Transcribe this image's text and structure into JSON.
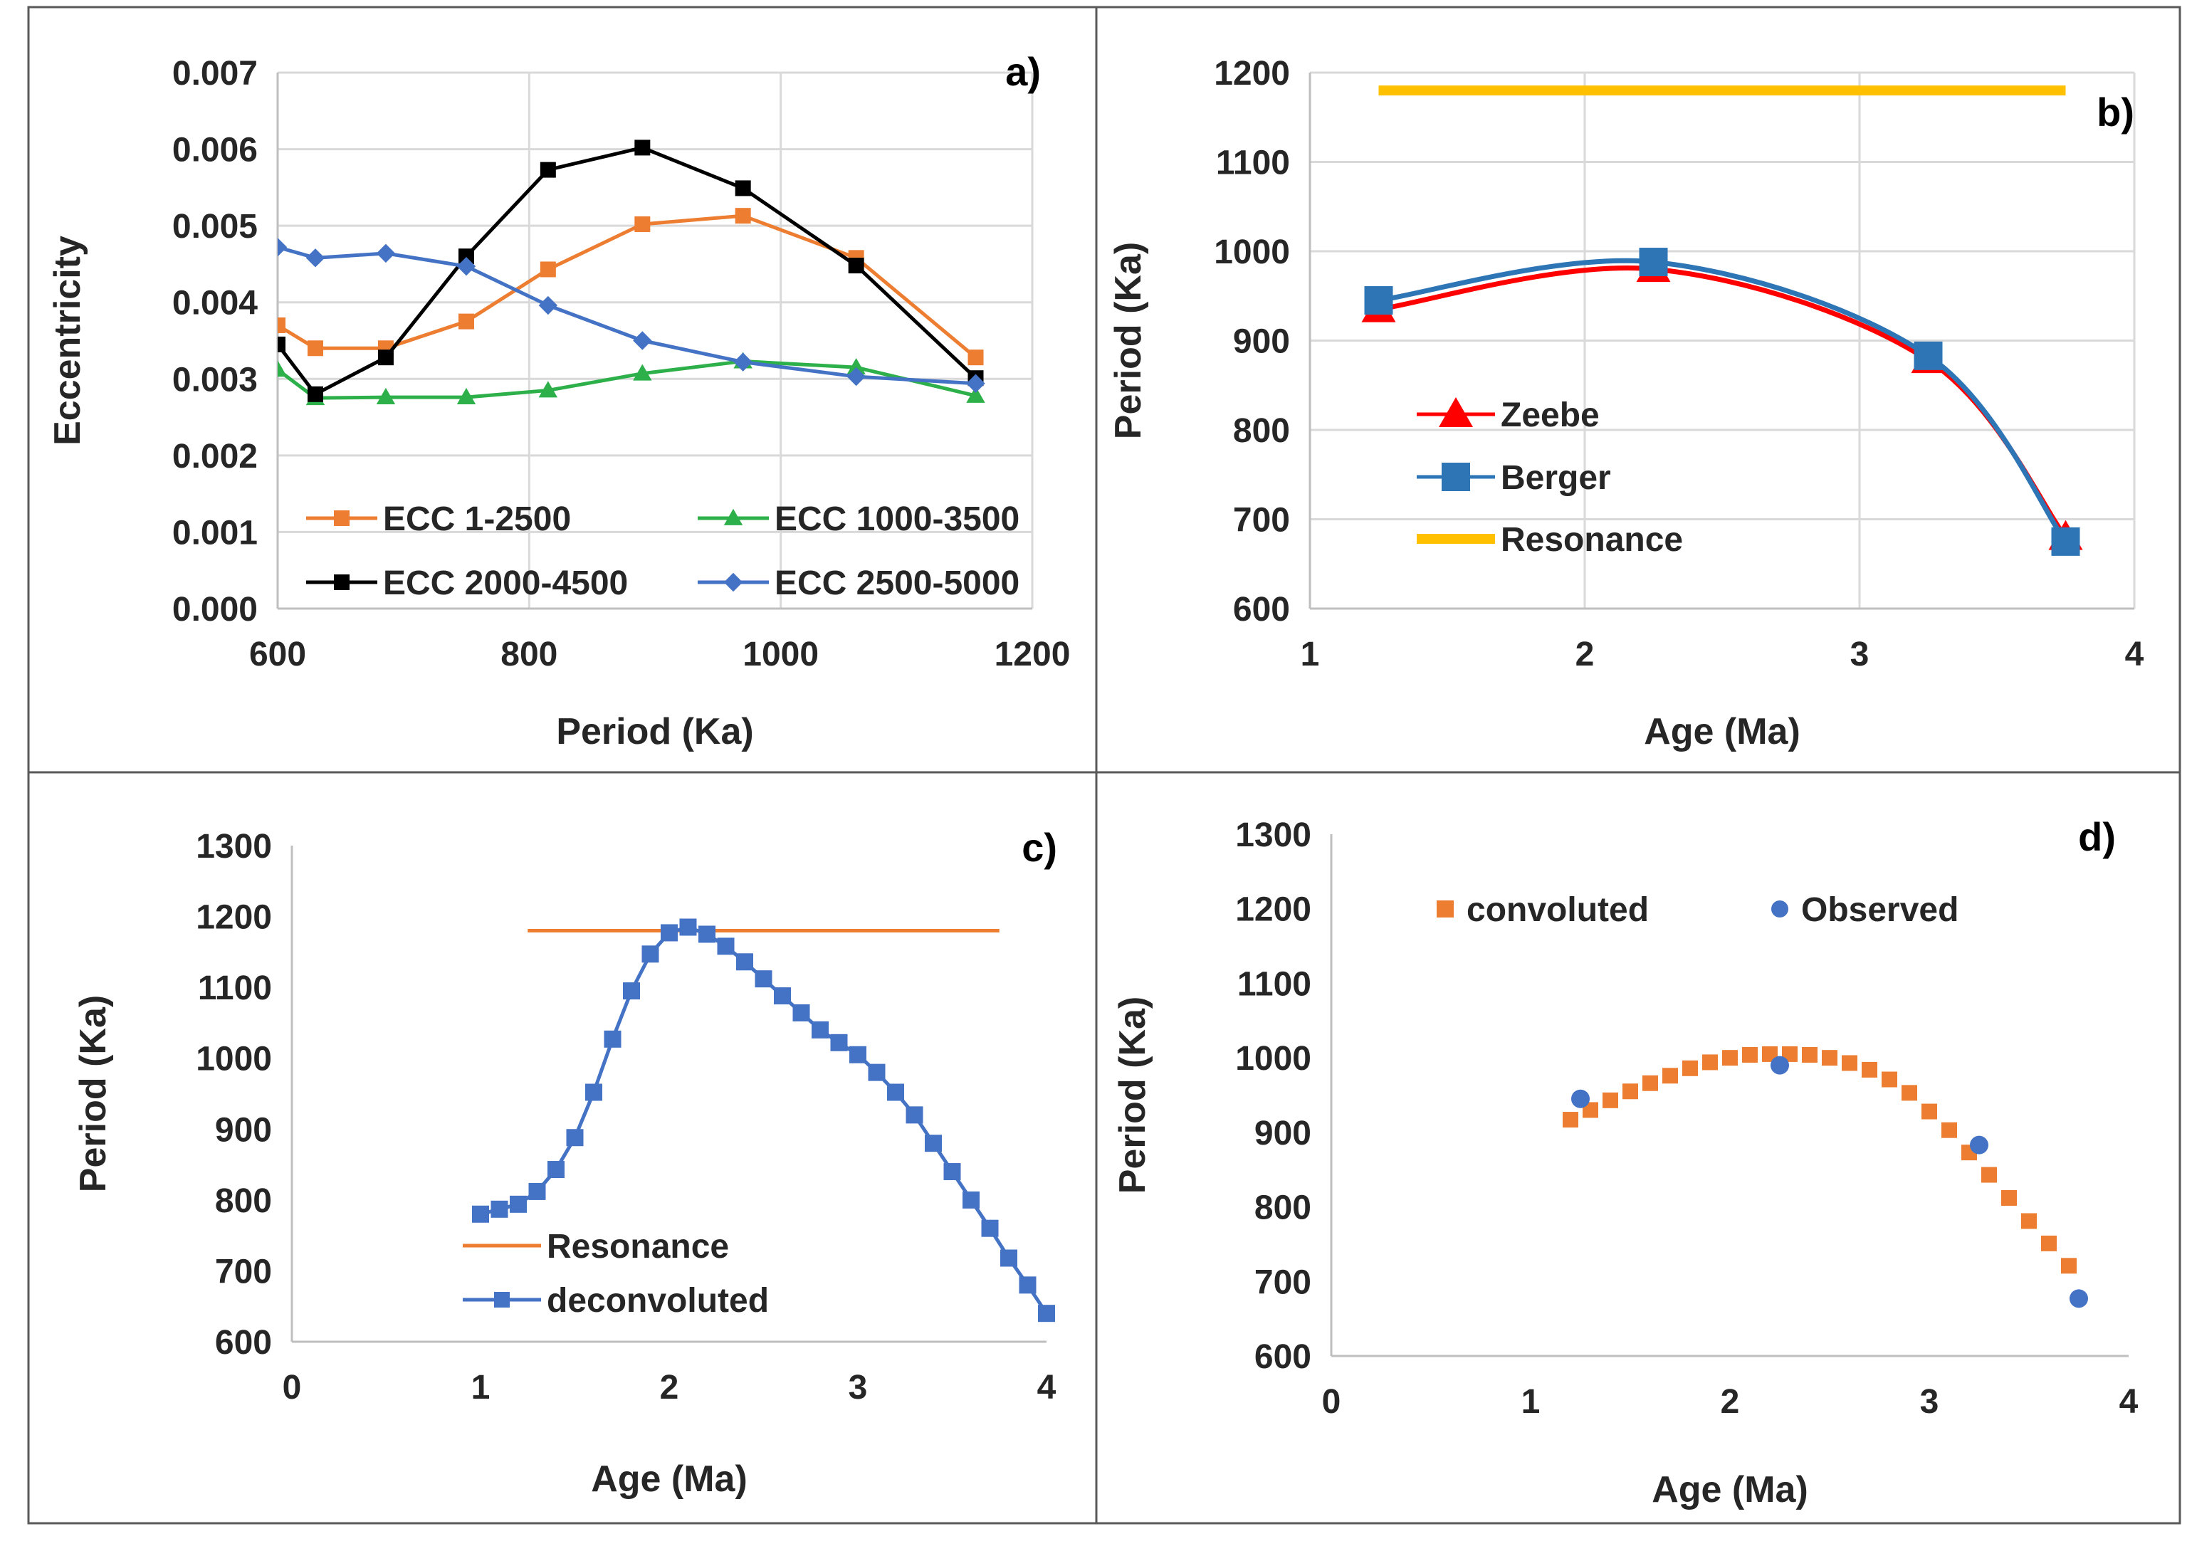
{
  "chart_data": [
    {
      "id": "a",
      "type": "line",
      "panel_label": "a)",
      "xlabel": "Period (Ka)",
      "ylabel": "Eccentricity",
      "xlim": [
        600,
        1200
      ],
      "ylim": [
        0,
        0.007
      ],
      "xticks": [
        "600",
        "800",
        "1000",
        "1200"
      ],
      "yticks": [
        "0.000",
        "0.001",
        "0.002",
        "0.003",
        "0.004",
        "0.005",
        "0.006",
        "0.007"
      ],
      "grid": true,
      "legend": [
        "ECC       1-2500",
        "ECC 1000-3500",
        "ECC 2000-4500",
        "ECC 2500-5000"
      ],
      "series": [
        {
          "name": "ECC       1-2500",
          "color": "#ED7D31",
          "marker": "square",
          "x": [
            600,
            630,
            686,
            750,
            815,
            890,
            970,
            1060,
            1155
          ],
          "y": [
            0.0037,
            0.0034,
            0.0034,
            0.00375,
            0.00443,
            0.00502,
            0.00513,
            0.00458,
            0.00328
          ]
        },
        {
          "name": "ECC 1000-3500",
          "color": "#2DB04A",
          "marker": "triangle",
          "x": [
            600,
            630,
            686,
            750,
            815,
            890,
            970,
            1060,
            1155
          ],
          "y": [
            0.00312,
            0.00275,
            0.00276,
            0.00276,
            0.00285,
            0.00307,
            0.00323,
            0.00315,
            0.00278
          ]
        },
        {
          "name": "ECC 2000-4500",
          "color": "#000000",
          "marker": "square",
          "x": [
            600,
            630,
            686,
            750,
            815,
            890,
            970,
            1060,
            1155
          ],
          "y": [
            0.00345,
            0.0028,
            0.00328,
            0.0046,
            0.00573,
            0.00602,
            0.00549,
            0.00448,
            0.00301
          ]
        },
        {
          "name": "ECC 2500-5000",
          "color": "#4472C4",
          "marker": "diamond",
          "x": [
            600,
            630,
            686,
            750,
            815,
            890,
            970,
            1060,
            1155
          ],
          "y": [
            0.00472,
            0.00458,
            0.00464,
            0.00447,
            0.00396,
            0.0035,
            0.00322,
            0.00303,
            0.00294
          ]
        }
      ]
    },
    {
      "id": "b",
      "type": "line",
      "panel_label": "b)",
      "xlabel": "Age (Ma)",
      "ylabel": "Period (Ka)",
      "xlim": [
        1,
        4
      ],
      "ylim": [
        600,
        1200
      ],
      "xticks": [
        "1",
        "2",
        "3",
        "4"
      ],
      "yticks": [
        "600",
        "700",
        "800",
        "900",
        "1000",
        "1100",
        "1200"
      ],
      "grid": true,
      "legend": [
        "Zeebe",
        "Berger",
        "Resonance"
      ],
      "series": [
        {
          "name": "Zeebe",
          "color": "#FF0000",
          "marker": "triangle",
          "x": [
            1.25,
            2.25,
            3.25,
            3.75
          ],
          "y": [
            935,
            980,
            878,
            680
          ]
        },
        {
          "name": "Berger",
          "color": "#2E75B6",
          "marker": "square",
          "x": [
            1.25,
            2.25,
            3.25,
            3.75
          ],
          "y": [
            945,
            988,
            883,
            675
          ]
        },
        {
          "name": "Resonance",
          "color": "#FFC000",
          "marker": "none",
          "x": [
            1.25,
            3.75
          ],
          "y": [
            1180,
            1180
          ]
        }
      ]
    },
    {
      "id": "c",
      "type": "line",
      "panel_label": "c)",
      "xlabel": "Age (Ma)",
      "ylabel": "Period (Ka)",
      "xlim": [
        0,
        4
      ],
      "ylim": [
        600,
        1300
      ],
      "xticks": [
        "0",
        "1",
        "2",
        "3",
        "4"
      ],
      "yticks": [
        "600",
        "700",
        "800",
        "900",
        "1000",
        "1100",
        "1200",
        "1300"
      ],
      "grid": false,
      "legend": [
        "Resonance",
        "deconvoluted"
      ],
      "series": [
        {
          "name": "Resonance",
          "color": "#ED7D31",
          "marker": "none",
          "x": [
            1.25,
            3.75
          ],
          "y": [
            1180,
            1180
          ]
        },
        {
          "name": "deconvoluted",
          "color": "#4472C4",
          "marker": "square",
          "x": [
            1.0,
            1.1,
            1.2,
            1.3,
            1.4,
            1.5,
            1.6,
            1.7,
            1.8,
            1.9,
            2.0,
            2.1,
            2.2,
            2.3,
            2.4,
            2.5,
            2.6,
            2.7,
            2.8,
            2.9,
            3.0,
            3.1,
            3.2,
            3.3,
            3.4,
            3.5,
            3.6,
            3.7,
            3.8,
            3.9,
            4.0
          ],
          "y": [
            780,
            787,
            794,
            812,
            843,
            888,
            952,
            1027,
            1095,
            1147,
            1177,
            1185,
            1175,
            1158,
            1136,
            1112,
            1088,
            1064,
            1040,
            1022,
            1005,
            980,
            952,
            920,
            880,
            840,
            800,
            760,
            718,
            680,
            640
          ]
        }
      ]
    },
    {
      "id": "d",
      "type": "scatter",
      "panel_label": "d)",
      "xlabel": "Age (Ma)",
      "ylabel": "Period (Ka)",
      "xlim": [
        0,
        4
      ],
      "ylim": [
        600,
        1300
      ],
      "xticks": [
        "0",
        "1",
        "2",
        "3",
        "4"
      ],
      "yticks": [
        "600",
        "700",
        "800",
        "900",
        "1000",
        "1100",
        "1200",
        "1300"
      ],
      "grid": false,
      "legend": [
        "convoluted",
        "Observed"
      ],
      "series": [
        {
          "name": "convoluted",
          "color": "#ED7D31",
          "marker": "square",
          "x": [
            1.2,
            1.3,
            1.4,
            1.5,
            1.6,
            1.7,
            1.8,
            1.9,
            2.0,
            2.1,
            2.2,
            2.3,
            2.4,
            2.5,
            2.6,
            2.7,
            2.8,
            2.9,
            3.0,
            3.1,
            3.2,
            3.3,
            3.4,
            3.5,
            3.6,
            3.7
          ],
          "y": [
            917,
            930,
            943,
            955,
            966,
            976,
            986,
            994,
            1000,
            1004,
            1005,
            1005,
            1004,
            1000,
            993,
            984,
            971,
            953,
            928,
            903,
            873,
            843,
            812,
            781,
            751,
            721
          ]
        },
        {
          "name": "Observed",
          "color": "#4472C4",
          "marker": "circle",
          "x": [
            1.25,
            2.25,
            3.25,
            3.75
          ],
          "y": [
            945,
            990,
            883,
            677
          ]
        }
      ]
    }
  ]
}
